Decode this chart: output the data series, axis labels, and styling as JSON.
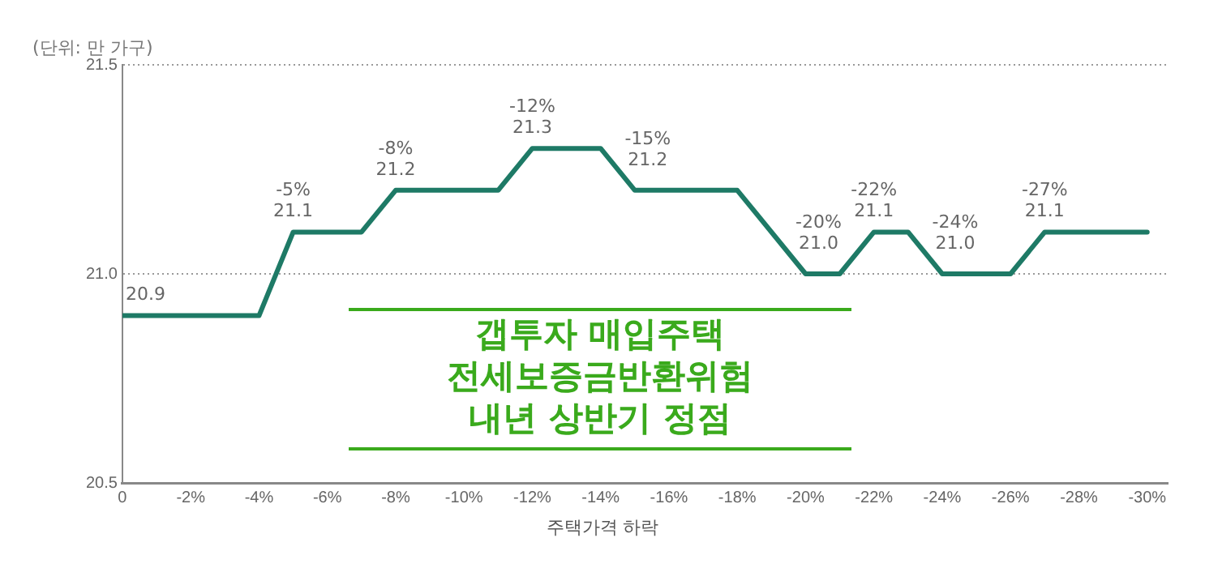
{
  "chart_data": {
    "type": "line",
    "ylabel": "(단위: 만 가구)",
    "xlabel": "주택가격 하락",
    "annotations": [
      "갭투자 매입주택",
      "전세보증금반환위험",
      "내년 상반기 정점"
    ],
    "x": [
      0,
      -4,
      -5,
      -7,
      -8,
      -11,
      -12,
      -14,
      -15,
      -18,
      -20,
      -21,
      -22,
      -23,
      -24,
      -26,
      -27,
      -30
    ],
    "series": [
      {
        "color": "#1e7a66",
        "values": [
          20.9,
          20.9,
          21.1,
          21.1,
          21.2,
          21.2,
          21.3,
          21.3,
          21.2,
          21.2,
          21.0,
          21.0,
          21.1,
          21.1,
          21.0,
          21.0,
          21.1,
          21.1
        ],
        "value_labels": [
          "20.9",
          null,
          "-5%\n21.1",
          null,
          "-8%\n21.2",
          null,
          "-12%\n21.3",
          null,
          "-15%\n21.2",
          null,
          "-20%\n21.0",
          null,
          "-22%\n21.1",
          null,
          "-24%\n21.0",
          null,
          "-27%\n21.1",
          null
        ]
      }
    ],
    "xlim": [
      0,
      -30.6
    ],
    "xticks": [
      0,
      {
        "value": -2,
        "label": "-2%"
      },
      {
        "value": -4,
        "label": "-4%"
      },
      {
        "value": -6,
        "label": "-6%"
      },
      {
        "value": -8,
        "label": "-8%"
      },
      {
        "value": -10,
        "label": "-10%"
      },
      {
        "value": -12,
        "label": "-12%"
      },
      {
        "value": -14,
        "label": "-14%"
      },
      {
        "value": -16,
        "label": "-16%"
      },
      {
        "value": -18,
        "label": "-18%"
      },
      {
        "value": -20,
        "label": "-20%"
      },
      {
        "value": -22,
        "label": "-22%"
      },
      {
        "value": -24,
        "label": "-24%"
      },
      {
        "value": -26,
        "label": "-26%"
      },
      {
        "value": -28,
        "label": "-28%"
      },
      {
        "value": -30,
        "label": "-30%"
      }
    ],
    "ylim": [
      20.5,
      21.5
    ],
    "yticks": [
      20.5,
      {
        "value": 21.0,
        "label": "21.0"
      },
      21.5
    ],
    "grid": "y",
    "line_style": "solid",
    "marker": "none",
    "legend": false
  }
}
